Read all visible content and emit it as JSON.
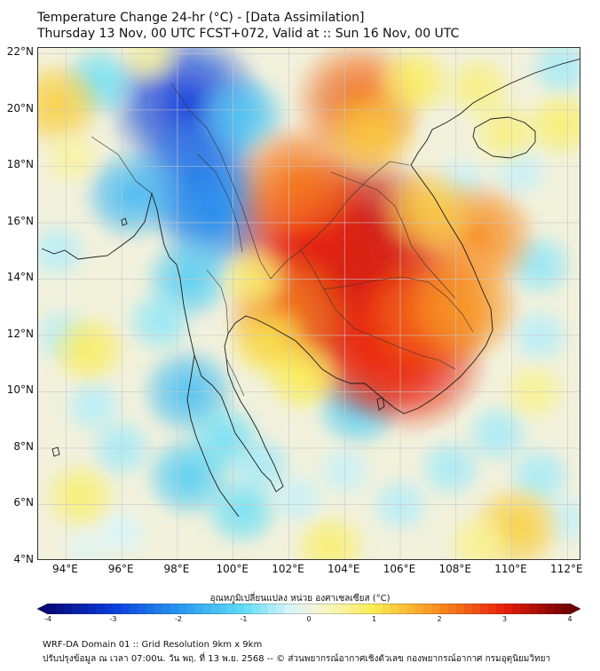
{
  "header": {
    "title": "Temperature Change 24-hr (°C) - [Data Assimilation]",
    "subtitle": "Thursday 13 Nov, 00 UTC FCST+072, Valid at :: Sun 16 Nov, 00 UTC"
  },
  "map": {
    "lon_range": [
      93,
      112.5
    ],
    "lat_range": [
      4,
      22.2
    ],
    "lat_labels": [
      "22°N",
      "20°N",
      "18°N",
      "16°N",
      "14°N",
      "12°N",
      "10°N",
      "8°N",
      "6°N",
      "4°N"
    ],
    "lat_values": [
      22,
      20,
      18,
      16,
      14,
      12,
      10,
      8,
      6,
      4
    ],
    "lon_labels": [
      "94°E",
      "96°E",
      "98°E",
      "100°E",
      "102°E",
      "104°E",
      "106°E",
      "108°E",
      "110°E",
      "112°E"
    ],
    "lon_values": [
      94,
      96,
      98,
      100,
      102,
      104,
      106,
      108,
      110,
      112
    ],
    "anomalies": [
      {
        "lon": 98.3,
        "lat": 20.2,
        "value": -3.0
      },
      {
        "lon": 98.8,
        "lat": 17.6,
        "value": -2.4
      },
      {
        "lon": 99.3,
        "lat": 16.2,
        "value": -2.1
      },
      {
        "lon": 96.4,
        "lat": 17.0,
        "value": -1.5
      },
      {
        "lon": 100.3,
        "lat": 19.8,
        "value": -1.3
      },
      {
        "lon": 95.2,
        "lat": 21.0,
        "value": -0.9
      },
      {
        "lon": 98.4,
        "lat": 14.0,
        "value": -1.2
      },
      {
        "lon": 98.4,
        "lat": 10.0,
        "value": -1.4
      },
      {
        "lon": 98.4,
        "lat": 7.0,
        "value": -1.2
      },
      {
        "lon": 99.7,
        "lat": 8.3,
        "value": -0.9
      },
      {
        "lon": 104.5,
        "lat": 9.5,
        "value": -1.2
      },
      {
        "lon": 97.4,
        "lat": 12.5,
        "value": -0.7
      },
      {
        "lon": 100.3,
        "lat": 5.8,
        "value": -0.9
      },
      {
        "lon": 96.0,
        "lat": 8.0,
        "value": -0.6
      },
      {
        "lon": 95.0,
        "lat": 9.5,
        "value": -0.5
      },
      {
        "lon": 93.9,
        "lat": 12.0,
        "value": -0.5
      },
      {
        "lon": 93.7,
        "lat": 15.0,
        "value": -0.5
      },
      {
        "lon": 101.0,
        "lat": 7.4,
        "value": -0.6
      },
      {
        "lon": 102.3,
        "lat": 6.2,
        "value": -0.4
      },
      {
        "lon": 104.0,
        "lat": 7.2,
        "value": -0.4
      },
      {
        "lon": 106.0,
        "lat": 6.0,
        "value": -0.5
      },
      {
        "lon": 107.8,
        "lat": 7.3,
        "value": -0.6
      },
      {
        "lon": 109.5,
        "lat": 8.5,
        "value": -0.6
      },
      {
        "lon": 111.0,
        "lat": 7.0,
        "value": -0.6
      },
      {
        "lon": 112.0,
        "lat": 5.5,
        "value": -0.4
      },
      {
        "lon": 96.0,
        "lat": 5.0,
        "value": -0.3
      },
      {
        "lon": 94.8,
        "lat": 4.4,
        "value": -0.2
      },
      {
        "lon": 111.0,
        "lat": 14.5,
        "value": -0.7
      },
      {
        "lon": 110.3,
        "lat": 17.8,
        "value": -0.4
      },
      {
        "lon": 108.2,
        "lat": 17.4,
        "value": -0.4
      },
      {
        "lon": 111.0,
        "lat": 12.0,
        "value": -0.5
      },
      {
        "lon": 111.8,
        "lat": 21.5,
        "value": -0.6
      },
      {
        "lon": 103.8,
        "lat": 20.5,
        "value": -0.3
      },
      {
        "lon": 103.5,
        "lat": 13.4,
        "value": 3.4
      },
      {
        "lon": 104.5,
        "lat": 15.8,
        "value": 3.3
      },
      {
        "lon": 102.7,
        "lat": 15.5,
        "value": 3.0
      },
      {
        "lon": 105.8,
        "lat": 13.8,
        "value": 3.1
      },
      {
        "lon": 106.3,
        "lat": 11.2,
        "value": 3.0
      },
      {
        "lon": 105.0,
        "lat": 11.6,
        "value": 2.9
      },
      {
        "lon": 107.0,
        "lat": 12.8,
        "value": 2.3
      },
      {
        "lon": 102.0,
        "lat": 12.9,
        "value": 2.2
      },
      {
        "lon": 102.3,
        "lat": 17.4,
        "value": 2.2
      },
      {
        "lon": 108.3,
        "lat": 13.0,
        "value": 1.9
      },
      {
        "lon": 108.8,
        "lat": 15.5,
        "value": 2.0
      },
      {
        "lon": 107.0,
        "lat": 16.4,
        "value": 1.4
      },
      {
        "lon": 104.5,
        "lat": 20.3,
        "value": 2.3
      },
      {
        "lon": 105.0,
        "lat": 19.2,
        "value": 1.4
      },
      {
        "lon": 106.5,
        "lat": 21.0,
        "value": 0.9
      },
      {
        "lon": 108.8,
        "lat": 20.8,
        "value": 0.7
      },
      {
        "lon": 109.8,
        "lat": 19.2,
        "value": 0.7
      },
      {
        "lon": 111.8,
        "lat": 19.5,
        "value": 0.8
      },
      {
        "lon": 93.7,
        "lat": 20.2,
        "value": 1.3
      },
      {
        "lon": 94.2,
        "lat": 18.3,
        "value": 0.5
      },
      {
        "lon": 101.3,
        "lat": 11.8,
        "value": 1.1
      },
      {
        "lon": 102.5,
        "lat": 10.6,
        "value": 1.0
      },
      {
        "lon": 100.8,
        "lat": 14.0,
        "value": 0.8
      },
      {
        "lon": 94.8,
        "lat": 11.5,
        "value": 0.9
      },
      {
        "lon": 94.5,
        "lat": 6.3,
        "value": 0.8
      },
      {
        "lon": 110.2,
        "lat": 5.2,
        "value": 1.3
      },
      {
        "lon": 110.8,
        "lat": 10.0,
        "value": 0.6
      },
      {
        "lon": 103.5,
        "lat": 4.5,
        "value": 0.8
      },
      {
        "lon": 108.8,
        "lat": 4.6,
        "value": 0.6
      },
      {
        "lon": 97.0,
        "lat": 21.9,
        "value": 0.5
      }
    ],
    "place_names": []
  },
  "colorbar": {
    "title": "อุณหภูมิเปลี่ยนแปลง หน่วย องศาเซลเซียส (°C)",
    "ticks": [
      "-4",
      "-3",
      "-2",
      "-1",
      "0",
      "1",
      "2",
      "3",
      "4"
    ],
    "min": -4,
    "max": 4
  },
  "footer": {
    "line1": "WRF-DA Domain 01 :: Grid Resolution 9km x 9km",
    "line2": "ปรับปรุงข้อมูล ณ เวลา 07:00น. วัน พฤ. ที่ 13 พ.ย. 2568 -- © ส่วนพยากรณ์อากาศเชิงตัวเลข กองพยากรณ์อากาศ กรมอุตุนิยมวิทยา"
  }
}
